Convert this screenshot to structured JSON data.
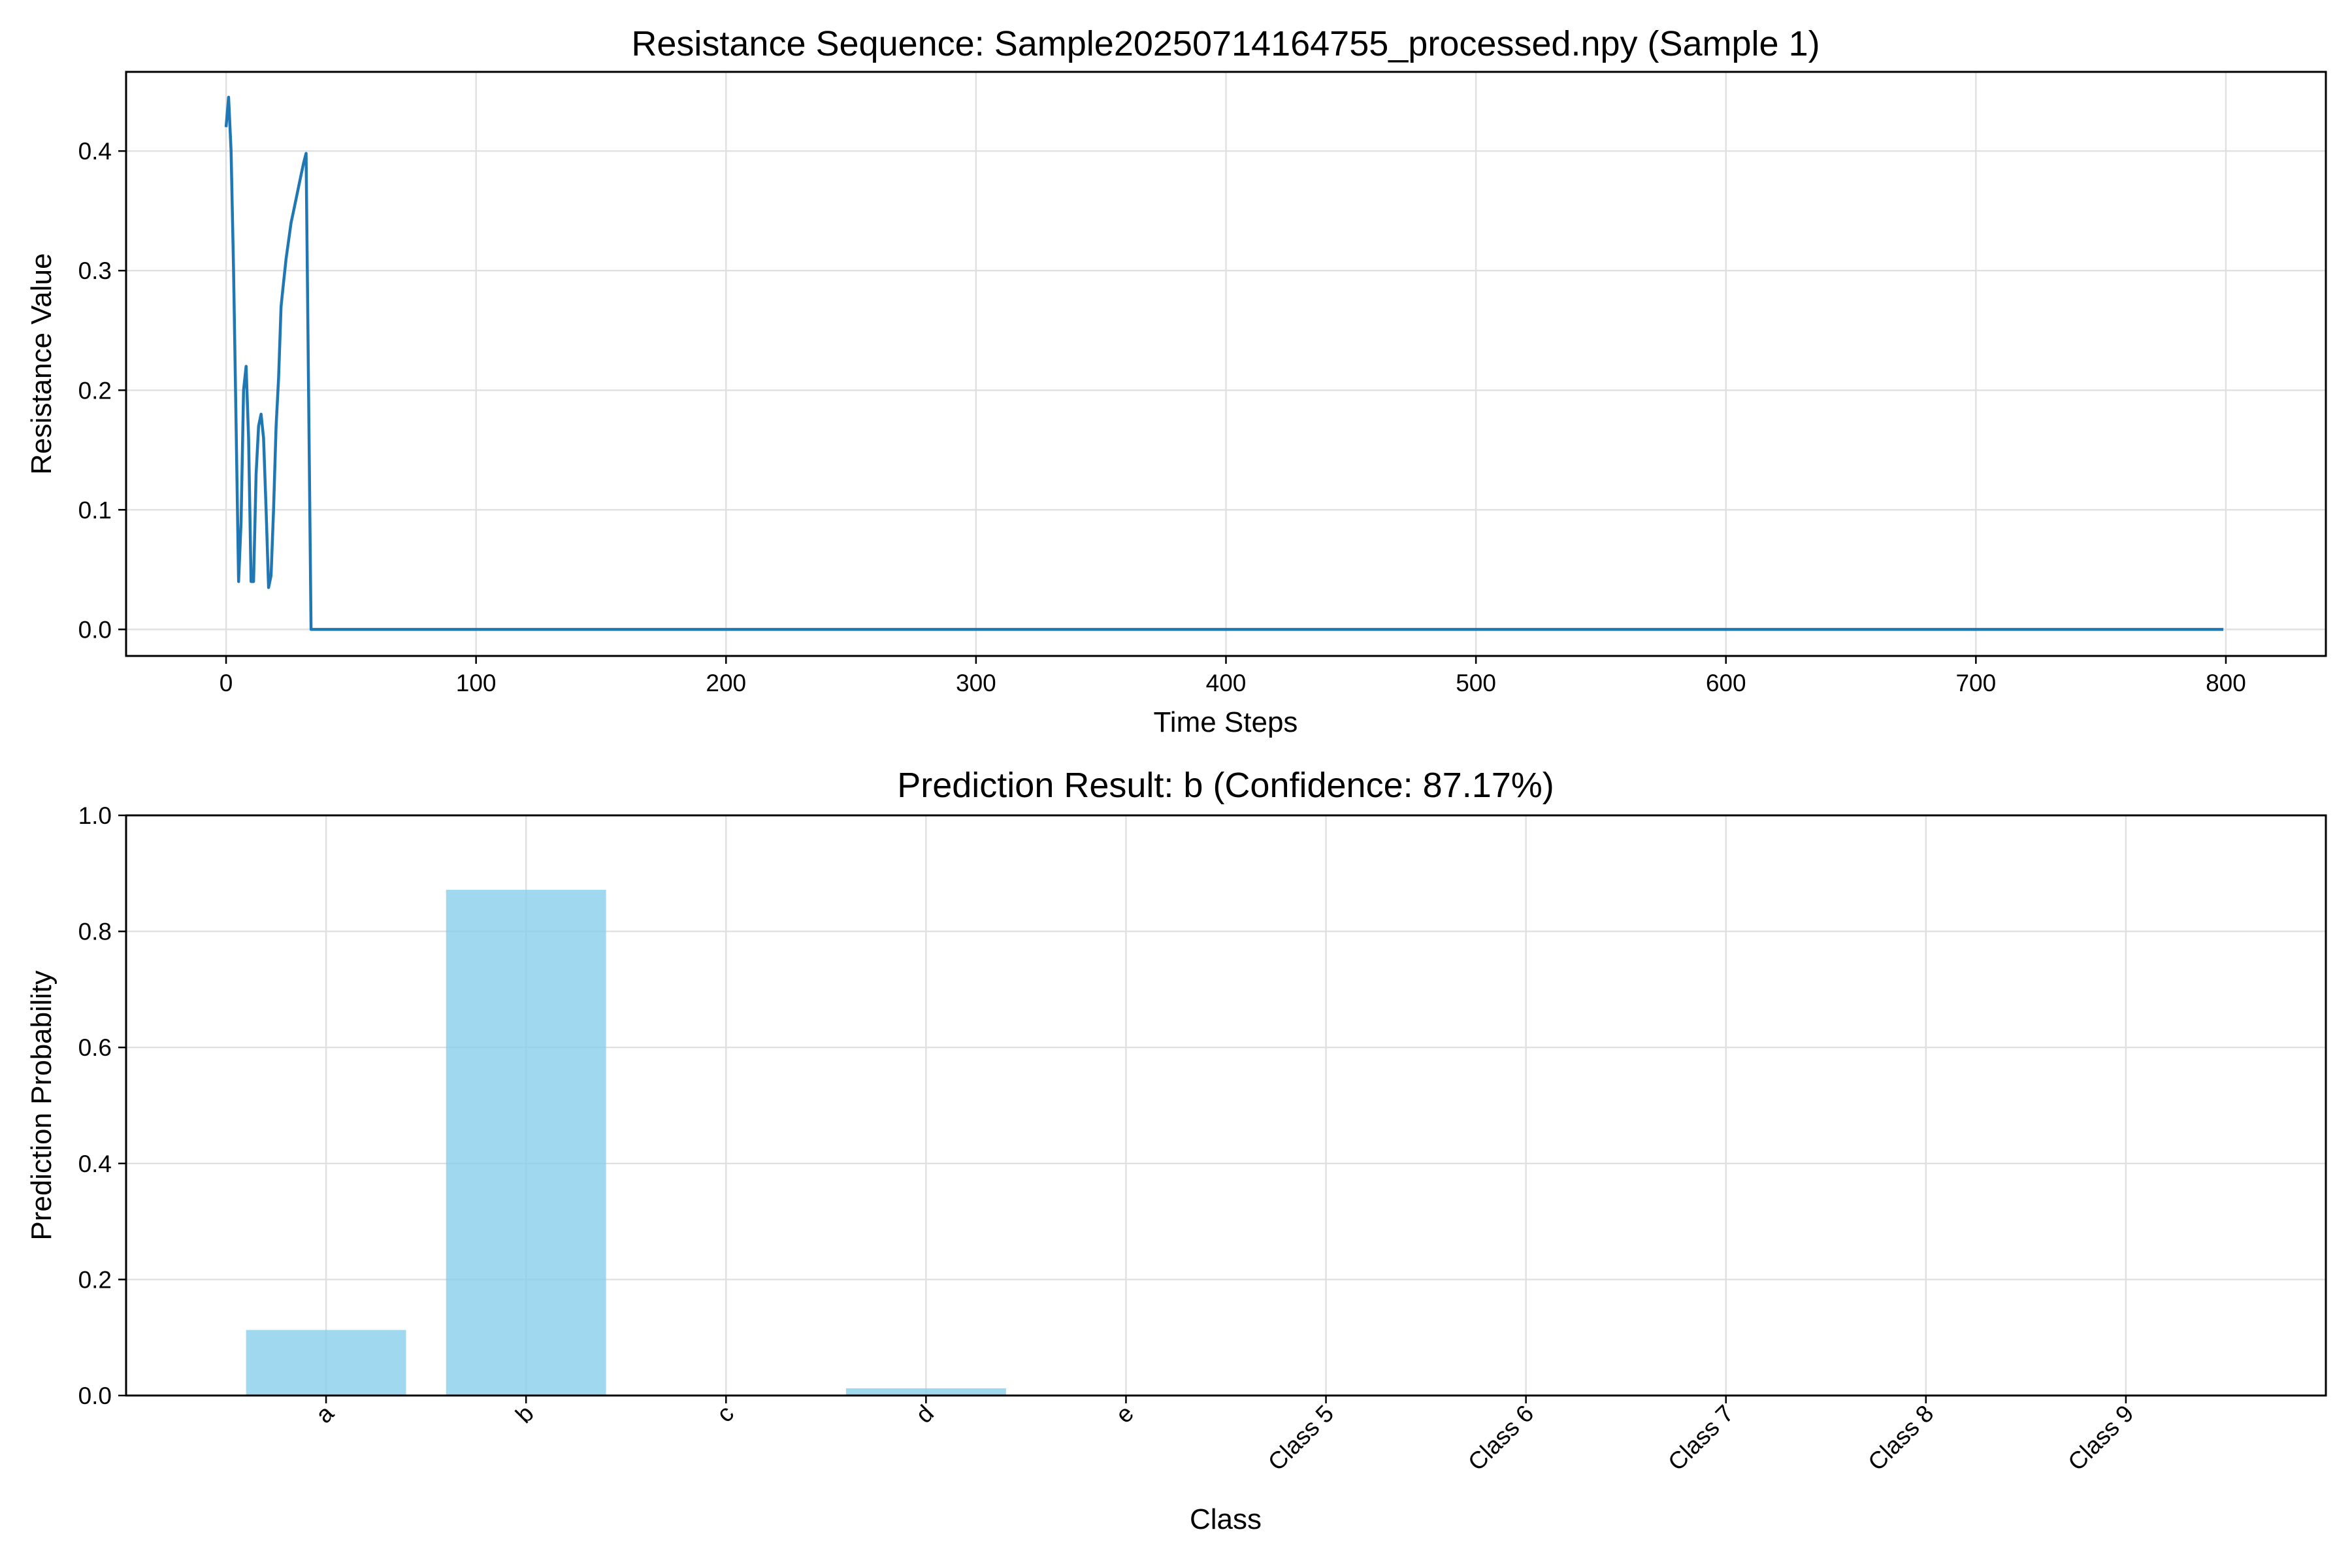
{
  "chart_data": [
    {
      "type": "line",
      "title": "Resistance Sequence: Sample20250714164755_processed.npy (Sample 1)",
      "xlabel": "Time Steps",
      "ylabel": "Resistance Value",
      "xlim": [
        -40,
        840
      ],
      "ylim": [
        -0.0222,
        0.4662
      ],
      "xticks": [
        0,
        100,
        200,
        300,
        400,
        500,
        600,
        700,
        800
      ],
      "yticks": [
        0.0,
        0.1,
        0.2,
        0.3,
        0.4
      ],
      "ytick_labels": [
        "0.0",
        "0.1",
        "0.2",
        "0.3",
        "0.4"
      ],
      "grid": true,
      "color": "#1f77b4",
      "series": [
        {
          "x": [
            0,
            1,
            2,
            3,
            4,
            5,
            6,
            7,
            8,
            9,
            10,
            11,
            12,
            13,
            14,
            15,
            16,
            17,
            18,
            19,
            20,
            21,
            22,
            23,
            24,
            25,
            26,
            27,
            28,
            29,
            30,
            31,
            32,
            33,
            34,
            35,
            36,
            799
          ],
          "y": [
            0.42,
            0.445,
            0.4,
            0.3,
            0.17,
            0.04,
            0.09,
            0.2,
            0.22,
            0.16,
            0.04,
            0.04,
            0.13,
            0.17,
            0.18,
            0.16,
            0.1,
            0.035,
            0.045,
            0.1,
            0.17,
            0.21,
            0.27,
            0.29,
            0.31,
            0.325,
            0.34,
            0.35,
            0.36,
            0.37,
            0.38,
            0.39,
            0.398,
            0.2,
            0.0,
            0.0,
            0.0,
            0.0
          ]
        }
      ]
    },
    {
      "type": "bar",
      "title": "Prediction Result: b (Confidence: 87.17%)",
      "xlabel": "Class",
      "ylabel": "Prediction Probability",
      "categories": [
        "a",
        "b",
        "c",
        "d",
        "e",
        "Class 5",
        "Class 6",
        "Class 7",
        "Class 8",
        "Class 9"
      ],
      "values": [
        0.113,
        0.8717,
        0.0005,
        0.0125,
        0.0015,
        0.0,
        0.0,
        0.0,
        0.0,
        0.0
      ],
      "ylim": [
        0,
        1.0
      ],
      "yticks": [
        0.0,
        0.2,
        0.4,
        0.6,
        0.8,
        1.0
      ],
      "ytick_labels": [
        "0.0",
        "0.2",
        "0.4",
        "0.6",
        "0.8",
        "1.0"
      ],
      "tick_rotation": -45,
      "grid": true,
      "color": "#87ceeb"
    }
  ]
}
